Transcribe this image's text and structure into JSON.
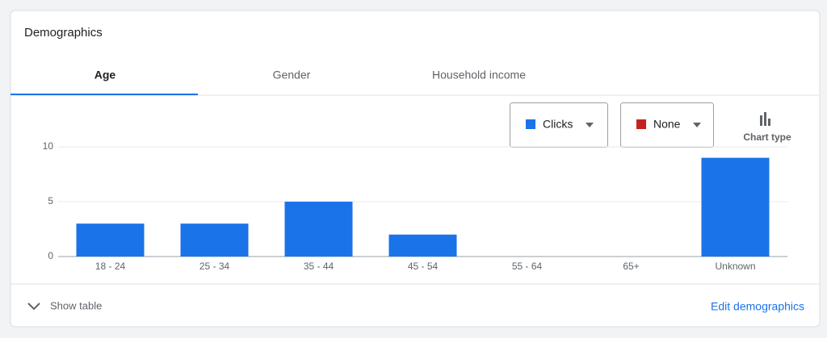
{
  "card": {
    "title": "Demographics",
    "tabs": [
      "Age",
      "Gender",
      "Household income"
    ],
    "secondary_metric": {
      "label": "None",
      "color": "#c5221f"
    },
    "chart_type_label": "Chart type",
    "footer": {
      "show_table": "Show table",
      "edit": "Edit demographics"
    }
  },
  "chart_data": {
    "type": "bar",
    "categories": [
      "18 - 24",
      "25 - 34",
      "35 - 44",
      "45 - 54",
      "55 - 64",
      "65+",
      "Unknown"
    ],
    "series": [
      {
        "name": "Clicks",
        "color": "#1a73e8",
        "values": [
          3,
          3,
          5,
          2,
          0,
          0,
          9
        ]
      }
    ],
    "ylim": [
      0,
      10
    ],
    "yticks": [
      0,
      5,
      10
    ],
    "grid": true
  }
}
